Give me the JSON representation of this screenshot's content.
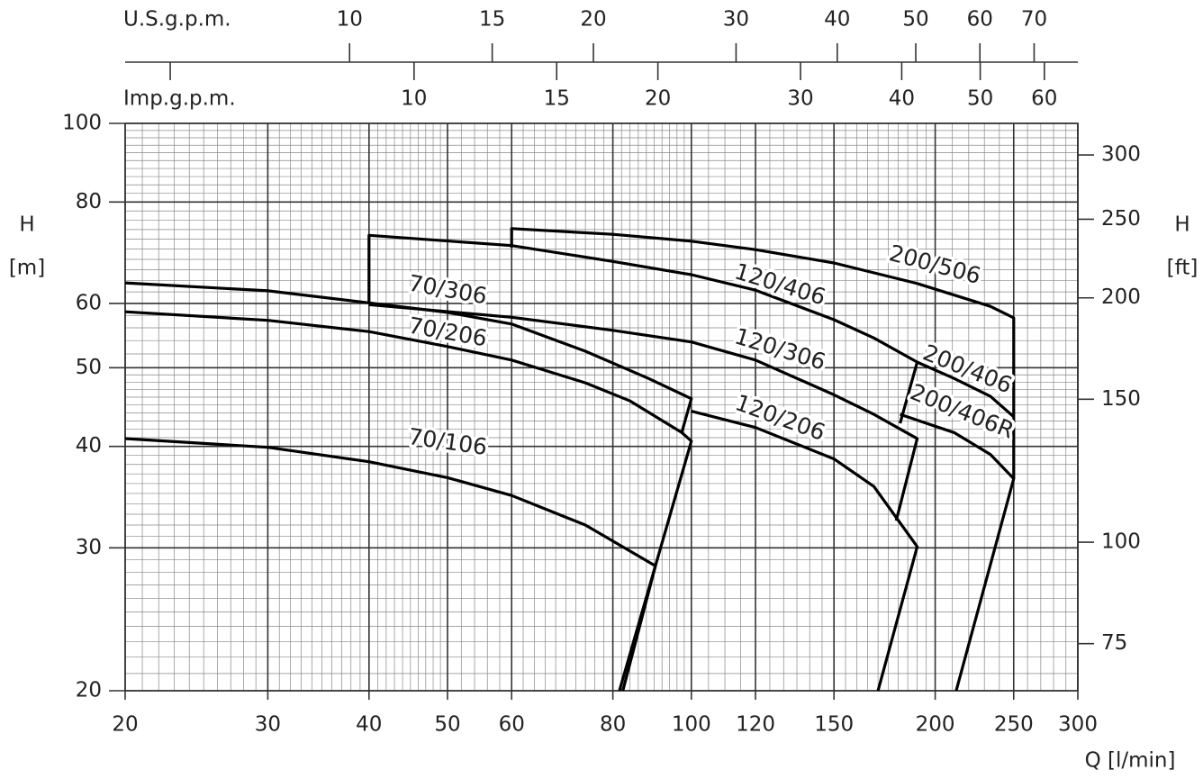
{
  "chart_data": {
    "type": "line",
    "log_x": true,
    "log_y": true,
    "grid": true,
    "minor_grid": true,
    "color": "#000000",
    "xlabel": "Q [l/min]",
    "ylabel": "H",
    "ylabel_unit": "[m]",
    "y2label": "H",
    "y2label_unit": "[ft]",
    "xlim": [
      20,
      300
    ],
    "xticks": [
      20,
      30,
      40,
      50,
      60,
      80,
      100,
      120,
      150,
      200,
      250,
      300
    ],
    "ylim": [
      20,
      100
    ],
    "yticks": [
      20,
      30,
      40,
      50,
      60,
      80,
      100
    ],
    "y2lim": [
      65.62,
      328.08
    ],
    "y2ticks": [
      75,
      100,
      150,
      200,
      250,
      300
    ],
    "top_axes": [
      {
        "label": "U.S.g.p.m.",
        "xlim": [
          5.284,
          79.26
        ],
        "xticks": [
          10,
          15,
          20,
          30,
          40,
          50,
          60,
          70
        ]
      },
      {
        "label": "Imp.g.p.m.",
        "xlim": [
          4.399,
          65.99
        ],
        "xticks": [
          {
            "value": 5,
            "label": null
          },
          10,
          15,
          20,
          30,
          40,
          50,
          60
        ]
      }
    ],
    "series": [
      {
        "name": "70/106",
        "x": [
          20,
          30,
          40,
          50,
          60,
          74,
          90.3,
          82.3
        ],
        "values": [
          40.9,
          39.9,
          38.3,
          36.6,
          34.8,
          32.0,
          28.5,
          20
        ]
      },
      {
        "name": "70/206",
        "x": [
          20,
          30,
          40,
          50,
          60,
          74,
          84,
          97.3,
          100,
          81.5
        ],
        "values": [
          58.6,
          57.2,
          55.4,
          53.1,
          51.1,
          47.9,
          45.5,
          41.6,
          40.6,
          20
        ]
      },
      {
        "name": "70/306",
        "x": [
          20,
          30,
          40,
          50,
          60,
          74,
          88.5,
          100,
          97.3
        ],
        "values": [
          63.6,
          62.2,
          60.1,
          58.5,
          56.6,
          52.4,
          48.5,
          45.8,
          41.6
        ]
      },
      {
        "name": "120/206",
        "x": [
          100,
          120,
          150,
          168,
          190,
          170
        ],
        "values": [
          44.2,
          42.2,
          38.6,
          35.7,
          30.1,
          20
        ]
      },
      {
        "name": "120/306",
        "x": [
          40,
          60,
          80,
          100,
          120,
          150,
          168,
          190,
          179
        ],
        "values": [
          59.8,
          57.7,
          55.6,
          53.8,
          51.1,
          46.3,
          43.8,
          40.9,
          32.4
        ]
      },
      {
        "name": "120/406",
        "x": [
          40,
          40,
          60,
          80,
          100,
          120,
          150,
          168,
          190,
          181
        ],
        "values": [
          60.2,
          72.8,
          70.7,
          67.6,
          65.1,
          62.3,
          57.3,
          54.4,
          50.8,
          42.7
        ]
      },
      {
        "name": "200/406",
        "x": [
          190,
          211,
          234,
          250
        ],
        "values": [
          50.8,
          48.5,
          46.1,
          43.5
        ]
      },
      {
        "name": "200/406R",
        "x": [
          181,
          211,
          234,
          250,
          212.3
        ],
        "values": [
          43.8,
          41.6,
          39.1,
          36.5,
          20
        ]
      },
      {
        "name": "200/506",
        "x": [
          60,
          60,
          80,
          100,
          120,
          150,
          190,
          234,
          250,
          250
        ],
        "values": [
          70.3,
          74.2,
          73.0,
          71.6,
          69.9,
          67.3,
          63.5,
          59.5,
          57.6,
          36.5
        ]
      }
    ]
  }
}
